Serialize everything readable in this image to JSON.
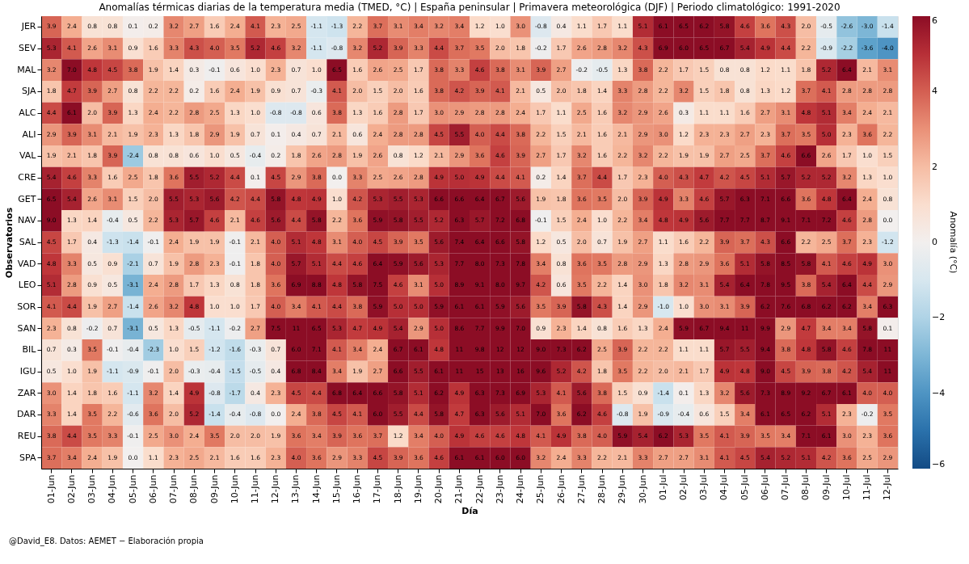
{
  "chart_data": {
    "type": "heatmap",
    "title": "Anomalías térmicas diarias de la temperatura media (TMED, °C) | España peninsular | Primavera meteorológica (DJF) | Periodo climatológico: 1991-2020",
    "xlabel": "Día",
    "ylabel": "Observatorios",
    "clabel": "Anomalía (°C)",
    "annotations": [
      "@David_E8. Datos: AEMET − Elaboración propia"
    ],
    "categories": [
      "01-Jun",
      "02-Jun",
      "03-Jun",
      "04-Jun",
      "05-Jun",
      "06-Jun",
      "07-Jun",
      "08-Jun",
      "09-Jun",
      "10-Jun",
      "11-Jun",
      "12-Jun",
      "13-Jun",
      "14-Jun",
      "15-Jun",
      "16-Jun",
      "17-Jun",
      "18-Jun",
      "19-Jun",
      "20-Jun",
      "21-Jun",
      "22-Jun",
      "23-Jun",
      "24-Jun",
      "25-Jun",
      "26-Jun",
      "27-Jun",
      "28-Jun",
      "29-Jun",
      "30-Jun",
      "01-Jul",
      "02-Jul",
      "03-Jul",
      "04-Jul",
      "05-Jul",
      "06-Jul",
      "07-Jul",
      "08-Jul",
      "09-Jul",
      "10-Jul",
      "11-Jul",
      "12-Jul"
    ],
    "y_categories": [
      "JER",
      "SEV",
      "MAL",
      "SJA",
      "ALC",
      "ALI",
      "VAL",
      "CRE",
      "GET",
      "NAV",
      "SAL",
      "VAD",
      "LEO",
      "SOR",
      "SAN",
      "BIL",
      "IGU",
      "ZAR",
      "DAR",
      "REU",
      "SPA"
    ],
    "cells": [
      [
        3.9,
        2.4,
        0.8,
        0.8,
        0.1,
        0.2,
        3.2,
        2.7,
        1.6,
        2.4,
        4.1,
        2.3,
        2.5,
        -1.1,
        -1.3,
        2.2,
        3.7,
        3.1,
        3.4,
        3.2,
        3.4,
        1.2,
        1.0,
        3.0,
        -0.8,
        0.4,
        1.1,
        1.7,
        1.1,
        5.1,
        6.1,
        6.5,
        6.2,
        5.8,
        4.6,
        3.6,
        4.3,
        2.0,
        -0.5,
        -2.6,
        -3.0,
        -1.4
      ],
      [
        5.3,
        4.1,
        2.6,
        3.1,
        0.9,
        1.6,
        3.3,
        4.3,
        4.0,
        3.5,
        5.2,
        4.6,
        3.2,
        -1.1,
        -0.8,
        3.2,
        5.2,
        3.9,
        3.3,
        4.4,
        3.7,
        3.5,
        2.0,
        1.8,
        -0.2,
        1.7,
        2.6,
        2.8,
        3.2,
        4.3,
        6.9,
        6.0,
        6.5,
        6.7,
        5.4,
        4.9,
        4.4,
        2.2,
        -0.9,
        -2.2,
        -3.6,
        -4.0
      ],
      [
        3.2,
        7.0,
        4.8,
        4.5,
        3.8,
        1.9,
        1.4,
        0.3,
        -0.1,
        0.6,
        1.0,
        2.3,
        0.7,
        1.0,
        6.5,
        1.6,
        2.6,
        2.5,
        1.7,
        3.8,
        3.3,
        4.6,
        3.8,
        3.1,
        3.9,
        2.7,
        -0.2,
        -0.5,
        1.3,
        3.8,
        2.2,
        1.7,
        1.5,
        0.8,
        0.8,
        1.2,
        1.1,
        1.8,
        5.2,
        6.4,
        2.1,
        3.1
      ],
      [
        1.8,
        4.7,
        3.9,
        2.7,
        0.8,
        2.2,
        2.2,
        0.2,
        1.6,
        2.4,
        1.9,
        0.9,
        0.7,
        -0.3,
        4.1,
        2.0,
        1.5,
        2.0,
        1.6,
        3.8,
        4.2,
        3.9,
        4.1,
        2.1,
        0.5,
        2.0,
        1.8,
        1.4,
        3.3,
        2.8,
        2.2,
        3.2,
        1.5,
        1.8,
        0.8,
        1.3,
        1.2,
        3.7,
        4.1,
        2.8,
        2.8,
        2.8
      ],
      [
        4.4,
        6.1,
        2.0,
        3.9,
        1.3,
        2.4,
        2.2,
        2.8,
        2.5,
        1.3,
        1.0,
        -0.8,
        -0.8,
        0.6,
        3.8,
        1.3,
        1.6,
        2.8,
        1.7,
        3.0,
        2.9,
        2.8,
        2.8,
        2.4,
        1.7,
        1.1,
        2.5,
        1.6,
        3.2,
        2.9,
        2.6,
        0.3,
        1.1,
        1.1,
        1.6,
        2.7,
        3.1,
        4.8,
        5.1,
        3.4,
        2.4,
        2.1
      ],
      [
        2.9,
        3.9,
        3.1,
        2.1,
        1.9,
        2.3,
        1.3,
        1.8,
        2.9,
        1.9,
        0.7,
        0.1,
        0.4,
        0.7,
        2.1,
        0.6,
        2.4,
        2.8,
        2.8,
        4.5,
        5.5,
        4.0,
        4.4,
        3.8,
        2.2,
        1.5,
        2.1,
        1.6,
        2.1,
        2.9,
        3.0,
        1.2,
        2.3,
        2.3,
        2.7,
        2.3,
        3.7,
        3.5,
        5.0,
        2.3,
        3.6,
        2.2
      ],
      [
        1.9,
        2.1,
        1.8,
        3.9,
        -2.4,
        0.8,
        0.8,
        0.6,
        1.0,
        0.5,
        -0.4,
        0.2,
        1.8,
        2.6,
        2.8,
        1.9,
        2.6,
        0.8,
        1.2,
        2.1,
        2.9,
        3.6,
        4.6,
        3.9,
        2.7,
        1.7,
        3.2,
        1.6,
        2.2,
        3.2,
        2.2,
        1.9,
        1.9,
        2.7,
        2.5,
        3.7,
        4.6,
        6.6,
        2.6,
        1.7,
        1.0,
        1.5
      ],
      [
        5.4,
        4.6,
        3.3,
        1.6,
        2.5,
        1.8,
        3.6,
        5.5,
        5.2,
        4.4,
        0.1,
        4.5,
        2.9,
        3.8,
        0.0,
        3.3,
        2.5,
        2.6,
        2.8,
        4.9,
        5.0,
        4.9,
        4.4,
        4.1,
        0.2,
        1.4,
        3.7,
        4.4,
        1.7,
        2.3,
        4.0,
        4.3,
        4.7,
        4.2,
        4.5,
        5.1,
        5.7,
        5.2,
        5.2,
        3.2,
        1.3,
        1.0
      ],
      [
        6.5,
        5.4,
        2.6,
        3.1,
        1.5,
        2.0,
        5.5,
        5.3,
        5.6,
        4.2,
        4.4,
        5.8,
        4.8,
        4.9,
        1.0,
        4.2,
        5.3,
        5.5,
        5.3,
        6.6,
        6.6,
        6.4,
        6.7,
        5.6,
        1.9,
        1.8,
        3.6,
        3.5,
        2.0,
        3.9,
        4.9,
        3.3,
        4.6,
        5.7,
        6.3,
        7.1,
        6.6,
        3.6,
        4.8,
        6.4,
        2.4,
        0.8
      ],
      [
        9.0,
        1.3,
        1.4,
        -0.4,
        0.5,
        2.2,
        5.3,
        5.7,
        4.6,
        2.1,
        4.6,
        5.6,
        4.4,
        5.8,
        2.2,
        3.6,
        5.9,
        5.8,
        5.5,
        5.2,
        6.3,
        5.7,
        7.2,
        6.8,
        -0.1,
        1.5,
        2.4,
        1.0,
        2.2,
        3.4,
        4.8,
        4.9,
        5.6,
        7.7,
        7.7,
        8.7,
        9.1,
        7.1,
        7.2,
        4.6,
        2.8,
        0.0
      ],
      [
        4.5,
        1.7,
        0.4,
        -1.3,
        -1.4,
        -0.1,
        2.4,
        1.9,
        1.9,
        -0.1,
        2.1,
        4.0,
        5.1,
        4.8,
        3.1,
        4.0,
        4.5,
        3.9,
        3.5,
        5.6,
        7.4,
        6.4,
        6.6,
        5.8,
        1.2,
        0.5,
        2.0,
        0.7,
        1.9,
        2.7,
        1.1,
        1.6,
        2.2,
        3.9,
        3.7,
        4.3,
        6.6,
        2.2,
        2.5,
        3.7,
        2.3,
        -1.2
      ],
      [
        4.8,
        3.3,
        0.5,
        0.9,
        -2.1,
        0.7,
        1.9,
        2.8,
        2.3,
        -0.1,
        1.8,
        4.0,
        5.7,
        5.1,
        4.4,
        4.6,
        6.4,
        5.9,
        5.6,
        5.3,
        7.7,
        8.0,
        7.3,
        7.8,
        3.4,
        0.8,
        3.6,
        3.5,
        2.8,
        2.9,
        1.3,
        2.8,
        2.9,
        3.6,
        5.1,
        5.8,
        8.5,
        5.8,
        4.1,
        4.6,
        4.9,
        3.0
      ],
      [
        5.1,
        2.8,
        0.9,
        0.5,
        -3.1,
        2.4,
        2.8,
        1.7,
        1.3,
        0.8,
        1.8,
        3.6,
        6.9,
        8.8,
        4.8,
        5.8,
        7.5,
        4.6,
        3.1,
        5.0,
        8.9,
        9.1,
        8.0,
        9.7,
        4.2,
        0.6,
        3.5,
        2.2,
        1.4,
        3.0,
        1.8,
        3.2,
        3.1,
        5.4,
        6.4,
        7.8,
        9.5,
        3.8,
        5.4,
        6.4,
        4.4,
        2.9
      ],
      [
        4.1,
        4.4,
        1.9,
        2.7,
        -1.4,
        2.6,
        3.2,
        4.8,
        1.0,
        1.0,
        1.7,
        4.0,
        3.4,
        4.1,
        4.4,
        3.8,
        5.9,
        5.0,
        5.0,
        5.9,
        6.1,
        6.1,
        5.9,
        5.6,
        3.5,
        3.9,
        5.8,
        4.3,
        1.4,
        2.9,
        -1.0,
        1.0,
        3.0,
        3.1,
        3.9,
        6.2,
        7.6,
        6.8,
        6.2,
        6.2,
        3.4,
        6.3
      ],
      [
        2.3,
        0.8,
        -0.2,
        0.7,
        -3.1,
        0.5,
        1.3,
        -0.5,
        -1.1,
        -0.2,
        2.7,
        7.5,
        11,
        6.5,
        5.3,
        4.7,
        4.9,
        5.4,
        2.9,
        5.0,
        8.6,
        7.7,
        9.9,
        7.0,
        0.9,
        2.3,
        1.4,
        0.8,
        1.6,
        1.3,
        2.4,
        5.9,
        6.7,
        9.4,
        11,
        9.9,
        2.9,
        4.7,
        3.4,
        3.4,
        5.8,
        0.1
      ],
      [
        0.7,
        0.3,
        3.5,
        -0.1,
        -0.4,
        -2.3,
        1.0,
        1.5,
        -1.2,
        -1.6,
        -0.3,
        0.7,
        6.0,
        7.1,
        4.1,
        3.4,
        2.4,
        6.7,
        6.1,
        4.8,
        11,
        9.8,
        12,
        12,
        9.0,
        7.3,
        6.2,
        2.5,
        3.9,
        2.2,
        2.2,
        1.1,
        1.1,
        5.7,
        5.5,
        9.4,
        3.8,
        4.8,
        5.8,
        4.6,
        7.8,
        11
      ],
      [
        0.5,
        1.0,
        1.9,
        -1.1,
        -0.9,
        -0.1,
        2.0,
        -0.3,
        -0.4,
        -1.5,
        -0.5,
        0.4,
        6.8,
        8.4,
        3.4,
        1.9,
        2.7,
        6.6,
        5.5,
        6.1,
        11,
        15,
        13,
        16,
        9.6,
        5.2,
        4.2,
        1.8,
        3.5,
        2.2,
        2.0,
        2.1,
        1.7,
        4.9,
        4.8,
        9.0,
        4.5,
        3.9,
        3.8,
        4.2,
        5.4,
        11
      ],
      [
        3.0,
        1.4,
        1.8,
        1.6,
        -1.1,
        3.2,
        1.4,
        4.9,
        -0.8,
        -1.7,
        0.4,
        2.3,
        4.5,
        4.4,
        6.8,
        6.4,
        6.6,
        5.8,
        5.1,
        6.2,
        4.9,
        6.3,
        7.3,
        6.9,
        5.3,
        4.1,
        5.6,
        3.8,
        1.5,
        0.9,
        -1.4,
        0.1,
        1.3,
        3.2,
        5.6,
        7.3,
        8.9,
        9.2,
        6.7,
        6.1,
        4.0,
        4.0
      ],
      [
        3.3,
        1.4,
        3.5,
        2.2,
        -0.6,
        3.6,
        2.0,
        5.2,
        -1.4,
        -0.4,
        -0.8,
        0.0,
        2.4,
        3.8,
        4.5,
        4.1,
        6.0,
        5.5,
        4.4,
        5.8,
        4.7,
        6.3,
        5.6,
        5.1,
        7.0,
        3.6,
        6.2,
        4.6,
        -0.8,
        1.9,
        -0.9,
        -0.4,
        0.6,
        1.5,
        3.4,
        6.1,
        6.5,
        6.2,
        5.1,
        2.3,
        -0.2,
        3.5
      ],
      [
        3.8,
        4.4,
        3.5,
        3.3,
        -0.1,
        2.5,
        3.0,
        2.4,
        3.5,
        2.0,
        2.0,
        1.9,
        3.6,
        3.4,
        3.9,
        3.6,
        3.7,
        1.2,
        3.4,
        4.0,
        4.9,
        4.6,
        4.6,
        4.8,
        4.1,
        4.9,
        3.8,
        4.0,
        5.9,
        5.4,
        6.2,
        5.3,
        3.5,
        4.1,
        3.9,
        3.5,
        3.4,
        7.1,
        6.1,
        3.0,
        2.3,
        3.6
      ],
      [
        3.7,
        3.4,
        2.4,
        1.9,
        0.0,
        1.1,
        2.3,
        2.5,
        2.1,
        1.6,
        1.6,
        2.3,
        4.0,
        3.6,
        2.9,
        3.3,
        4.5,
        3.9,
        3.6,
        4.6,
        6.1,
        6.1,
        6.0,
        6.0,
        3.2,
        2.4,
        3.3,
        2.2,
        2.1,
        3.3,
        2.7,
        2.7,
        3.1,
        4.1,
        4.5,
        5.4,
        5.2,
        5.1,
        4.2,
        3.6,
        2.5,
        2.9
      ]
    ],
    "clim": [
      -6,
      6
    ],
    "cticks": [
      -6,
      -4,
      -2,
      0,
      2,
      4,
      6
    ],
    "cell_labels": [
      [
        "3.9",
        "2.4",
        "0.8",
        "0.8",
        "0.1",
        "0.2",
        "3.2",
        "2.7",
        "1.6",
        "2.4",
        "4.1",
        "2.3",
        "2.5",
        "-1.1",
        "-1.3",
        "2.2",
        "3.7",
        "3.1",
        "3.4",
        "3.2",
        "3.4",
        "1.2",
        "1.0",
        "3.0",
        "-0.8",
        "0.4",
        "1.1",
        "1.7",
        "1.1",
        "5.1",
        "6.1",
        "6.5",
        "6.2",
        "5.8",
        "4.6",
        "3.6",
        "4.3",
        "2.0",
        "-0.5",
        "-2.6",
        "-3.0",
        "-1.4"
      ],
      [
        "5.3",
        "4.1",
        "2.6",
        "3.1",
        "0.9",
        "1.6",
        "3.3",
        "4.3",
        "4.0",
        "3.5",
        "5.2",
        "4.6",
        "3.2",
        "-1.1",
        "-0.8",
        "3.2",
        "5.2",
        "3.9",
        "3.3",
        "4.4",
        "3.7",
        "3.5",
        "2.0",
        "1.8",
        "-0.2",
        "1.7",
        "2.6",
        "2.8",
        "3.2",
        "4.3",
        "6.9",
        "6.0",
        "6.5",
        "6.7",
        "5.4",
        "4.9",
        "4.4",
        "2.2",
        "-0.9",
        "-2.2",
        "-3.6",
        "-4.0"
      ],
      [
        "3.2",
        "7.0",
        "4.8",
        "4.5",
        "3.8",
        "1.9",
        "1.4",
        "0.3",
        "-0.1",
        "0.6",
        "1.0",
        "2.3",
        "0.7",
        "1.0",
        "6.5",
        "1.6",
        "2.6",
        "2.5",
        "1.7",
        "3.8",
        "3.3",
        "4.6",
        "3.8",
        "3.1",
        "3.9",
        "2.7",
        "-0.2",
        "-0.5",
        "1.3",
        "3.8",
        "2.2",
        "1.7",
        "1.5",
        "0.8",
        "0.8",
        "1.2",
        "1.1",
        "1.8",
        "5.2",
        "6.4",
        "2.1",
        "3.1"
      ],
      [
        "1.8",
        "4.7",
        "3.9",
        "2.7",
        "0.8",
        "2.2",
        "2.2",
        "0.2",
        "1.6",
        "2.4",
        "1.9",
        "0.9",
        "0.7",
        "-0.3",
        "4.1",
        "2.0",
        "1.5",
        "2.0",
        "1.6",
        "3.8",
        "4.2",
        "3.9",
        "4.1",
        "2.1",
        "0.5",
        "2.0",
        "1.8",
        "1.4",
        "3.3",
        "2.8",
        "2.2",
        "3.2",
        "1.5",
        "1.8",
        "0.8",
        "1.3",
        "1.2",
        "3.7",
        "4.1",
        "2.8",
        "2.8",
        "2.8"
      ],
      [
        "4.4",
        "6.1",
        "2.0",
        "3.9",
        "1.3",
        "2.4",
        "2.2",
        "2.8",
        "2.5",
        "1.3",
        "1.0",
        "-0.8",
        "-0.8",
        "0.6",
        "3.8",
        "1.3",
        "1.6",
        "2.8",
        "1.7",
        "3.0",
        "2.9",
        "2.8",
        "2.8",
        "2.4",
        "1.7",
        "1.1",
        "2.5",
        "1.6",
        "3.2",
        "2.9",
        "2.6",
        "0.3",
        "1.1",
        "1.1",
        "1.6",
        "2.7",
        "3.1",
        "4.8",
        "5.1",
        "3.4",
        "2.4",
        "2.1"
      ],
      [
        "2.9",
        "3.9",
        "3.1",
        "2.1",
        "1.9",
        "2.3",
        "1.3",
        "1.8",
        "2.9",
        "1.9",
        "0.7",
        "0.1",
        "0.4",
        "0.7",
        "2.1",
        "0.6",
        "2.4",
        "2.8",
        "2.8",
        "4.5",
        "5.5",
        "4.0",
        "4.4",
        "3.8",
        "2.2",
        "1.5",
        "2.1",
        "1.6",
        "2.1",
        "2.9",
        "3.0",
        "1.2",
        "2.3",
        "2.3",
        "2.7",
        "2.3",
        "3.7",
        "3.5",
        "5.0",
        "2.3",
        "3.6",
        "2.2"
      ],
      [
        "1.9",
        "2.1",
        "1.8",
        "3.9",
        "-2.4",
        "0.8",
        "0.8",
        "0.6",
        "1.0",
        "0.5",
        "-0.4",
        "0.2",
        "1.8",
        "2.6",
        "2.8",
        "1.9",
        "2.6",
        "0.8",
        "1.2",
        "2.1",
        "2.9",
        "3.6",
        "4.6",
        "3.9",
        "2.7",
        "1.7",
        "3.2",
        "1.6",
        "2.2",
        "3.2",
        "2.2",
        "1.9",
        "1.9",
        "2.7",
        "2.5",
        "3.7",
        "4.6",
        "6.6",
        "2.6",
        "1.7",
        "1.0",
        "1.5"
      ],
      [
        "5.4",
        "4.6",
        "3.3",
        "1.6",
        "2.5",
        "1.8",
        "3.6",
        "5.5",
        "5.2",
        "4.4",
        "0.1",
        "4.5",
        "2.9",
        "3.8",
        "0.0",
        "3.3",
        "2.5",
        "2.6",
        "2.8",
        "4.9",
        "5.0",
        "4.9",
        "4.4",
        "4.1",
        "0.2",
        "1.4",
        "3.7",
        "4.4",
        "1.7",
        "2.3",
        "4.0",
        "4.3",
        "4.7",
        "4.2",
        "4.5",
        "5.1",
        "5.7",
        "5.2",
        "5.2",
        "3.2",
        "1.3",
        "1.0"
      ],
      [
        "6.5",
        "5.4",
        "2.6",
        "3.1",
        "1.5",
        "2.0",
        "5.5",
        "5.3",
        "5.6",
        "4.2",
        "4.4",
        "5.8",
        "4.8",
        "4.9",
        "1.0",
        "4.2",
        "5.3",
        "5.5",
        "5.3",
        "6.6",
        "6.6",
        "6.4",
        "6.7",
        "5.6",
        "1.9",
        "1.8",
        "3.6",
        "3.5",
        "2.0",
        "3.9",
        "4.9",
        "3.3",
        "4.6",
        "5.7",
        "6.3",
        "7.1",
        "6.6",
        "3.6",
        "4.8",
        "6.4",
        "2.4",
        "0.8"
      ],
      [
        "9.0",
        "1.3",
        "1.4",
        "-0.4",
        "0.5",
        "2.2",
        "5.3",
        "5.7",
        "4.6",
        "2.1",
        "4.6",
        "5.6",
        "4.4",
        "5.8",
        "2.2",
        "3.6",
        "5.9",
        "5.8",
        "5.5",
        "5.2",
        "6.3",
        "5.7",
        "7.2",
        "6.8",
        "-0.1",
        "1.5",
        "2.4",
        "1.0",
        "2.2",
        "3.4",
        "4.8",
        "4.9",
        "5.6",
        "7.7",
        "7.7",
        "8.7",
        "9.1",
        "7.1",
        "7.2",
        "4.6",
        "2.8",
        "0.0"
      ],
      [
        "4.5",
        "1.7",
        "0.4",
        "-1.3",
        "-1.4",
        "-0.1",
        "2.4",
        "1.9",
        "1.9",
        "-0.1",
        "2.1",
        "4.0",
        "5.1",
        "4.8",
        "3.1",
        "4.0",
        "4.5",
        "3.9",
        "3.5",
        "5.6",
        "7.4",
        "6.4",
        "6.6",
        "5.8",
        "1.2",
        "0.5",
        "2.0",
        "0.7",
        "1.9",
        "2.7",
        "1.1",
        "1.6",
        "2.2",
        "3.9",
        "3.7",
        "4.3",
        "6.6",
        "2.2",
        "2.5",
        "3.7",
        "2.3",
        "-1.2"
      ],
      [
        "4.8",
        "3.3",
        "0.5",
        "0.9",
        "-2.1",
        "0.7",
        "1.9",
        "2.8",
        "2.3",
        "-0.1",
        "1.8",
        "4.0",
        "5.7",
        "5.1",
        "4.4",
        "4.6",
        "6.4",
        "5.9",
        "5.6",
        "5.3",
        "7.7",
        "8.0",
        "7.3",
        "7.8",
        "3.4",
        "0.8",
        "3.6",
        "3.5",
        "2.8",
        "2.9",
        "1.3",
        "2.8",
        "2.9",
        "3.6",
        "5.1",
        "5.8",
        "8.5",
        "5.8",
        "4.1",
        "4.6",
        "4.9",
        "3.0"
      ],
      [
        "5.1",
        "2.8",
        "0.9",
        "0.5",
        "-3.1",
        "2.4",
        "2.8",
        "1.7",
        "1.3",
        "0.8",
        "1.8",
        "3.6",
        "6.9",
        "8.8",
        "4.8",
        "5.8",
        "7.5",
        "4.6",
        "3.1",
        "5.0",
        "8.9",
        "9.1",
        "8.0",
        "9.7",
        "4.2",
        "0.6",
        "3.5",
        "2.2",
        "1.4",
        "3.0",
        "1.8",
        "3.2",
        "3.1",
        "5.4",
        "6.4",
        "7.8",
        "9.5",
        "3.8",
        "5.4",
        "6.4",
        "4.4",
        "2.9"
      ],
      [
        "4.1",
        "4.4",
        "1.9",
        "2.7",
        "-1.4",
        "2.6",
        "3.2",
        "4.8",
        "1.0",
        "1.0",
        "1.7",
        "4.0",
        "3.4",
        "4.1",
        "4.4",
        "3.8",
        "5.9",
        "5.0",
        "5.0",
        "5.9",
        "6.1",
        "6.1",
        "5.9",
        "5.6",
        "3.5",
        "3.9",
        "5.8",
        "4.3",
        "1.4",
        "2.9",
        "-1.0",
        "1.0",
        "3.0",
        "3.1",
        "3.9",
        "6.2",
        "7.6",
        "6.8",
        "6.2",
        "6.2",
        "3.4",
        "6.3"
      ],
      [
        "2.3",
        "0.8",
        "-0.2",
        "0.7",
        "-3.1",
        "0.5",
        "1.3",
        "-0.5",
        "-1.1",
        "-0.2",
        "2.7",
        "7.5",
        "11",
        "6.5",
        "5.3",
        "4.7",
        "4.9",
        "5.4",
        "2.9",
        "5.0",
        "8.6",
        "7.7",
        "9.9",
        "7.0",
        "0.9",
        "2.3",
        "1.4",
        "0.8",
        "1.6",
        "1.3",
        "2.4",
        "5.9",
        "6.7",
        "9.4",
        "11",
        "9.9",
        "2.9",
        "4.7",
        "3.4",
        "3.4",
        "5.8",
        "0.1"
      ],
      [
        "0.7",
        "0.3",
        "3.5",
        "-0.1",
        "-0.4",
        "-2.3",
        "1.0",
        "1.5",
        "-1.2",
        "-1.6",
        "-0.3",
        "0.7",
        "6.0",
        "7.1",
        "4.1",
        "3.4",
        "2.4",
        "6.7",
        "6.1",
        "4.8",
        "11",
        "9.8",
        "12",
        "12",
        "9.0",
        "7.3",
        "6.2",
        "2.5",
        "3.9",
        "2.2",
        "2.2",
        "1.1",
        "1.1",
        "5.7",
        "5.5",
        "9.4",
        "3.8",
        "4.8",
        "5.8",
        "4.6",
        "7.8",
        "11"
      ],
      [
        "0.5",
        "1.0",
        "1.9",
        "-1.1",
        "-0.9",
        "-0.1",
        "2.0",
        "-0.3",
        "-0.4",
        "-1.5",
        "-0.5",
        "0.4",
        "6.8",
        "8.4",
        "3.4",
        "1.9",
        "2.7",
        "6.6",
        "5.5",
        "6.1",
        "11",
        "15",
        "13",
        "16",
        "9.6",
        "5.2",
        "4.2",
        "1.8",
        "3.5",
        "2.2",
        "2.0",
        "2.1",
        "1.7",
        "4.9",
        "4.8",
        "9.0",
        "4.5",
        "3.9",
        "3.8",
        "4.2",
        "5.4",
        "11"
      ],
      [
        "3.0",
        "1.4",
        "1.8",
        "1.6",
        "-1.1",
        "3.2",
        "1.4",
        "4.9",
        "-0.8",
        "-1.7",
        "0.4",
        "2.3",
        "4.5",
        "4.4",
        "6.8",
        "6.4",
        "6.6",
        "5.8",
        "5.1",
        "6.2",
        "4.9",
        "6.3",
        "7.3",
        "6.9",
        "5.3",
        "4.1",
        "5.6",
        "3.8",
        "1.5",
        "0.9",
        "-1.4",
        "0.1",
        "1.3",
        "3.2",
        "5.6",
        "7.3",
        "8.9",
        "9.2",
        "6.7",
        "6.1",
        "4.0",
        "4.0"
      ],
      [
        "3.3",
        "1.4",
        "3.5",
        "2.2",
        "-0.6",
        "3.6",
        "2.0",
        "5.2",
        "-1.4",
        "-0.4",
        "-0.8",
        "0.0",
        "2.4",
        "3.8",
        "4.5",
        "4.1",
        "6.0",
        "5.5",
        "4.4",
        "5.8",
        "4.7",
        "6.3",
        "5.6",
        "5.1",
        "7.0",
        "3.6",
        "6.2",
        "4.6",
        "-0.8",
        "1.9",
        "-0.9",
        "-0.4",
        "0.6",
        "1.5",
        "3.4",
        "6.1",
        "6.5",
        "6.2",
        "5.1",
        "2.3",
        "-0.2",
        "3.5"
      ],
      [
        "3.8",
        "4.4",
        "3.5",
        "3.3",
        "-0.1",
        "2.5",
        "3.0",
        "2.4",
        "3.5",
        "2.0",
        "2.0",
        "1.9",
        "3.6",
        "3.4",
        "3.9",
        "3.6",
        "3.7",
        "1.2",
        "3.4",
        "4.0",
        "4.9",
        "4.6",
        "4.6",
        "4.8",
        "4.1",
        "4.9",
        "3.8",
        "4.0",
        "5.9",
        "5.4",
        "6.2",
        "5.3",
        "3.5",
        "4.1",
        "3.9",
        "3.5",
        "3.4",
        "7.1",
        "6.1",
        "3.0",
        "2.3",
        "3.6"
      ],
      [
        "3.7",
        "3.4",
        "2.4",
        "1.9",
        "0.0",
        "1.1",
        "2.3",
        "2.5",
        "2.1",
        "1.6",
        "1.6",
        "2.3",
        "4.0",
        "3.6",
        "2.9",
        "3.3",
        "4.5",
        "3.9",
        "3.6",
        "4.6",
        "6.1",
        "6.1",
        "6.0",
        "6.0",
        "3.2",
        "2.4",
        "3.3",
        "2.2",
        "2.1",
        "3.3",
        "2.7",
        "2.7",
        "3.1",
        "4.1",
        "4.5",
        "5.4",
        "5.2",
        "5.1",
        "4.2",
        "3.6",
        "2.5",
        "2.9"
      ]
    ],
    "grid": false
  }
}
